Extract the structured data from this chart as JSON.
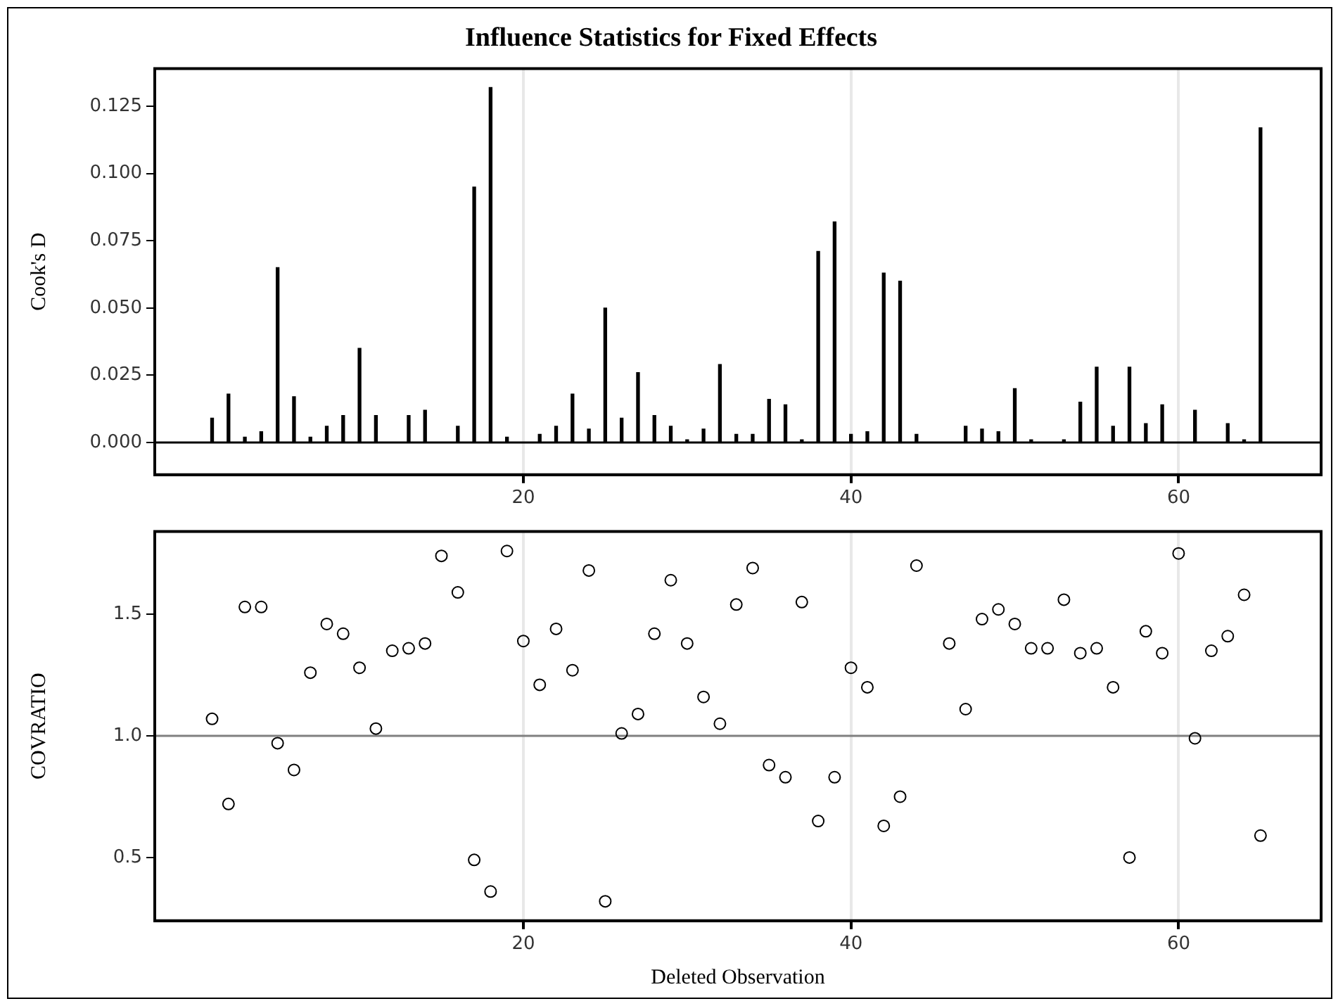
{
  "chart_data": [
    {
      "type": "bar",
      "title": "Influence Statistics for Fixed Effects",
      "ylabel": "Cook's D",
      "color": "#000000",
      "x": [
        1,
        2,
        3,
        4,
        5,
        6,
        7,
        8,
        9,
        10,
        11,
        12,
        13,
        14,
        15,
        16,
        17,
        18,
        19,
        20,
        21,
        22,
        23,
        24,
        25,
        26,
        27,
        28,
        29,
        30,
        31,
        32,
        33,
        34,
        35,
        36,
        37,
        38,
        39,
        40,
        41,
        42,
        43,
        44,
        45,
        46,
        47,
        48,
        49,
        50,
        51,
        52,
        53,
        54,
        55,
        56,
        57,
        58,
        59,
        60,
        61,
        62,
        63,
        64,
        65
      ],
      "values": [
        0.009,
        0.018,
        0.002,
        0.004,
        0.065,
        0.017,
        0.002,
        0.006,
        0.01,
        0.035,
        0.01,
        0.0,
        0.01,
        0.012,
        0.0,
        0.006,
        0.095,
        0.132,
        0.002,
        0.0,
        0.003,
        0.006,
        0.018,
        0.005,
        0.05,
        0.009,
        0.026,
        0.01,
        0.006,
        0.001,
        0.005,
        0.029,
        0.003,
        0.003,
        0.016,
        0.014,
        0.001,
        0.071,
        0.082,
        0.003,
        0.004,
        0.063,
        0.06,
        0.003,
        null,
        0.0,
        0.006,
        0.005,
        0.004,
        0.02,
        0.001,
        0.0,
        0.001,
        0.015,
        0.028,
        0.006,
        0.028,
        0.007,
        0.014,
        0.0,
        0.012,
        0.0,
        0.007,
        0.001,
        0.117
      ],
      "xlim": [
        -2.5,
        68.7
      ],
      "xticks": [
        20,
        40,
        60
      ],
      "ylim": [
        -0.012,
        0.139
      ],
      "yticks": [
        {
          "value": 0,
          "label": "0.000"
        },
        {
          "value": 0.025,
          "label": "0.025"
        },
        {
          "value": 0.05,
          "label": "0.050"
        },
        {
          "value": 0.075,
          "label": "0.075"
        },
        {
          "value": 0.1,
          "label": "0.100"
        },
        {
          "value": 0.125,
          "label": "0.125"
        }
      ],
      "grid": "x",
      "ref_lines": [
        {
          "axis": "y",
          "value": 0,
          "color": "#000000"
        }
      ]
    },
    {
      "type": "scatter",
      "ylabel": "COVRATIO",
      "xlabel": "Deleted Observation",
      "color": "#000000",
      "marker": "circle",
      "x": [
        1,
        2,
        3,
        4,
        5,
        6,
        7,
        8,
        9,
        10,
        11,
        12,
        13,
        14,
        15,
        16,
        17,
        18,
        19,
        20,
        21,
        22,
        23,
        24,
        25,
        26,
        27,
        28,
        29,
        30,
        31,
        32,
        33,
        34,
        35,
        36,
        37,
        38,
        39,
        40,
        41,
        42,
        43,
        44,
        45,
        46,
        47,
        48,
        49,
        50,
        51,
        52,
        53,
        54,
        55,
        56,
        57,
        58,
        59,
        60,
        61,
        62,
        63,
        64,
        65
      ],
      "values": [
        1.07,
        0.72,
        1.53,
        1.53,
        0.97,
        0.86,
        1.26,
        1.46,
        1.42,
        1.28,
        1.03,
        1.35,
        1.36,
        1.38,
        1.74,
        1.59,
        0.49,
        0.36,
        1.76,
        1.39,
        1.21,
        1.44,
        1.27,
        1.68,
        0.32,
        1.01,
        1.09,
        1.42,
        1.64,
        1.38,
        1.16,
        1.05,
        1.54,
        1.69,
        0.88,
        0.83,
        1.55,
        0.65,
        0.83,
        1.28,
        1.2,
        0.63,
        0.75,
        1.7,
        null,
        1.38,
        1.11,
        1.48,
        1.52,
        1.46,
        1.36,
        1.36,
        1.56,
        1.34,
        1.36,
        1.2,
        0.5,
        1.43,
        1.34,
        1.75,
        0.99,
        1.35,
        1.41,
        1.58,
        0.59
      ],
      "xlim": [
        -2.5,
        68.7
      ],
      "xticks": [
        20,
        40,
        60
      ],
      "ylim": [
        0.24,
        1.84
      ],
      "yticks": [
        {
          "value": 0.5,
          "label": "0.5"
        },
        {
          "value": 1,
          "label": "1.0"
        },
        {
          "value": 1.5,
          "label": "1.5"
        }
      ],
      "grid": "x",
      "ref_lines": [
        {
          "axis": "y",
          "value": 1,
          "color": "#808080"
        }
      ]
    }
  ]
}
